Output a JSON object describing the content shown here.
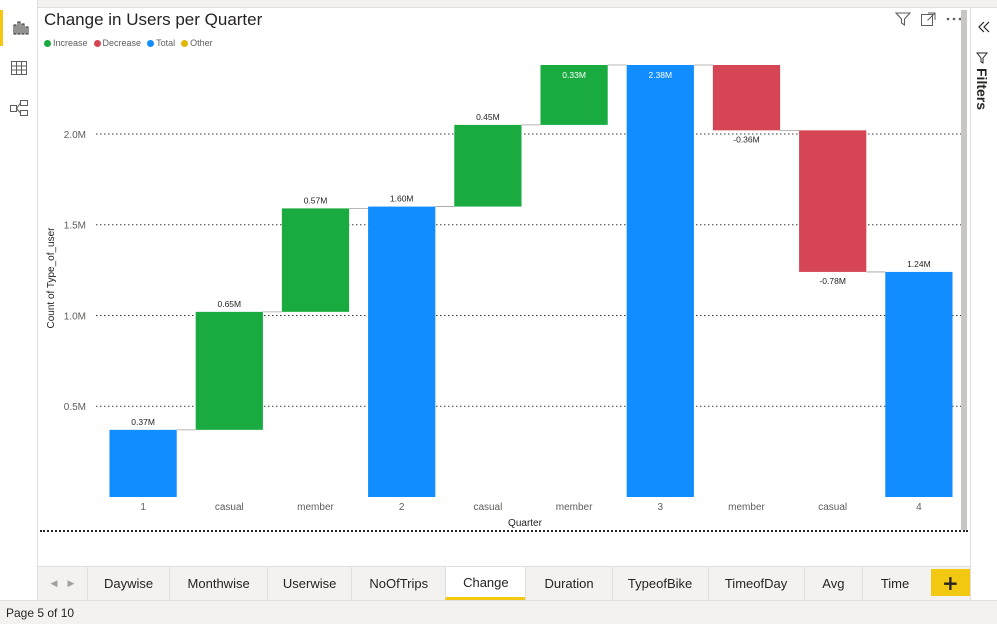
{
  "report": {
    "status": "Page 5 of 10"
  },
  "rail": {
    "items": [
      {
        "name": "report-view-icon",
        "active": true
      },
      {
        "name": "data-view-icon",
        "active": false
      },
      {
        "name": "model-view-icon",
        "active": false
      }
    ]
  },
  "visual": {
    "title": "Change in Users per Quarter",
    "legend": [
      {
        "label": "Increase",
        "color": "#1aab40"
      },
      {
        "label": "Decrease",
        "color": "#d64554"
      },
      {
        "label": "Total",
        "color": "#118dff"
      },
      {
        "label": "Other",
        "color": "#e0b700"
      }
    ]
  },
  "filters_pane": {
    "label": "Filters"
  },
  "tabs": {
    "items": [
      "Daywise",
      "Monthwise",
      "Userwise",
      "NoOfTrips",
      "Change",
      "Duration",
      "TypeofBike",
      "TimeofDay",
      "Avg",
      "Time"
    ],
    "active": "Change",
    "add_label": "+"
  },
  "chart_data": {
    "type": "waterfall",
    "title": "Change in Users per Quarter",
    "xlabel": "Quarter",
    "ylabel": "Count of Type_of_user",
    "ylim": [
      0,
      2.38
    ],
    "yticks": [
      0.5,
      1.0,
      1.5,
      2.0
    ],
    "ytick_labels": [
      "0.5M",
      "1.0M",
      "1.5M",
      "2.0M"
    ],
    "bars": [
      {
        "category": "1",
        "kind": "total",
        "start": 0,
        "end": 0.37,
        "label": "0.37M"
      },
      {
        "category": "casual",
        "kind": "increase",
        "start": 0.37,
        "end": 1.02,
        "label": "0.65M"
      },
      {
        "category": "member",
        "kind": "increase",
        "start": 1.02,
        "end": 1.59,
        "label": "0.57M"
      },
      {
        "category": "2",
        "kind": "total",
        "start": 0,
        "end": 1.6,
        "label": "1.60M"
      },
      {
        "category": "casual",
        "kind": "increase",
        "start": 1.6,
        "end": 2.05,
        "label": "0.45M"
      },
      {
        "category": "member",
        "kind": "increase",
        "start": 2.05,
        "end": 2.38,
        "label": "0.33M"
      },
      {
        "category": "3",
        "kind": "total",
        "start": 0,
        "end": 2.38,
        "label": "2.38M"
      },
      {
        "category": "member",
        "kind": "decrease",
        "start": 2.38,
        "end": 2.02,
        "label": "-0.36M"
      },
      {
        "category": "casual",
        "kind": "decrease",
        "start": 2.02,
        "end": 1.24,
        "label": "-0.78M"
      },
      {
        "category": "4",
        "kind": "total",
        "start": 0,
        "end": 1.24,
        "label": "1.24M"
      }
    ]
  }
}
